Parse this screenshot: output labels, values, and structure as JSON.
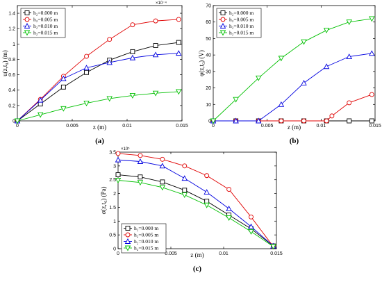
{
  "chart_data": [
    {
      "type": "line",
      "panel": "(a)",
      "caption": "(a)",
      "xlabel": "z (m)",
      "ylabel": "u(z,t₀) (m)",
      "multiplier": "×10⁻⁴",
      "xlim": [
        0,
        0.015
      ],
      "ylim": [
        0,
        1.5
      ],
      "xticks": [
        "0",
        "0.005",
        "0.01",
        "0.015"
      ],
      "yticks": [
        "0",
        "0.2",
        "0.4",
        "0.6",
        "0.8",
        "1",
        "1.2",
        "1.4"
      ],
      "legend_position": "top-left",
      "series": [
        {
          "name": "h₂=0.000 m",
          "color": "#000000",
          "marker": "square",
          "x": [
            0,
            0.0021,
            0.0042,
            0.0063,
            0.0084,
            0.0105,
            0.0126,
            0.0147
          ],
          "y": [
            0,
            0.22,
            0.44,
            0.63,
            0.79,
            0.9,
            0.98,
            1.02
          ]
        },
        {
          "name": "h₂=0.005 m",
          "color": "#e00000",
          "marker": "circle",
          "x": [
            0,
            0.0021,
            0.0042,
            0.0063,
            0.0084,
            0.0105,
            0.0126,
            0.0147
          ],
          "y": [
            0,
            0.28,
            0.58,
            0.84,
            1.06,
            1.25,
            1.3,
            1.32
          ]
        },
        {
          "name": "h₂=0.010 m",
          "color": "#0000e0",
          "marker": "triangle-up",
          "x": [
            0,
            0.0021,
            0.0042,
            0.0063,
            0.0084,
            0.0105,
            0.0126,
            0.0147
          ],
          "y": [
            0,
            0.27,
            0.55,
            0.69,
            0.76,
            0.82,
            0.86,
            0.88
          ]
        },
        {
          "name": "h₂=0.015 m",
          "color": "#00c000",
          "marker": "triangle-down",
          "x": [
            0,
            0.0021,
            0.0042,
            0.0063,
            0.0084,
            0.0105,
            0.0126,
            0.0147
          ],
          "y": [
            0,
            0.08,
            0.16,
            0.23,
            0.29,
            0.33,
            0.36,
            0.38
          ]
        }
      ]
    },
    {
      "type": "line",
      "panel": "(b)",
      "caption": "(b)",
      "xlabel": "z (m)",
      "ylabel": "φ(z,t₀) (V)",
      "xlim": [
        0,
        0.015
      ],
      "ylim": [
        0,
        70
      ],
      "xticks": [
        "0",
        "0.005",
        "0.01",
        "0.015"
      ],
      "yticks": [
        "0",
        "10",
        "20",
        "30",
        "40",
        "50",
        "60",
        "70"
      ],
      "legend_position": "top-left",
      "series": [
        {
          "name": "h₂=0.000 m",
          "color": "#000000",
          "marker": "square",
          "x": [
            0,
            0.0021,
            0.0042,
            0.0063,
            0.0084,
            0.0105,
            0.0126,
            0.0147
          ],
          "y": [
            0,
            0,
            0,
            0,
            0,
            0,
            0,
            0
          ]
        },
        {
          "name": "h₂=0.005 m",
          "color": "#e00000",
          "marker": "circle",
          "x": [
            0,
            0.0021,
            0.0042,
            0.0063,
            0.0084,
            0.0105,
            0.011,
            0.0126,
            0.0147
          ],
          "y": [
            0,
            0,
            0,
            0,
            0,
            0,
            3,
            11,
            16
          ]
        },
        {
          "name": "h₂=0.010 m",
          "color": "#0000e0",
          "marker": "triangle-up",
          "x": [
            0,
            0.0021,
            0.0042,
            0.0063,
            0.0084,
            0.0105,
            0.0126,
            0.0147
          ],
          "y": [
            0,
            0,
            0,
            10,
            23,
            33,
            39,
            41
          ]
        },
        {
          "name": "h₂=0.015 m",
          "color": "#00c000",
          "marker": "triangle-down",
          "x": [
            0,
            0.0021,
            0.0042,
            0.0063,
            0.0084,
            0.0105,
            0.0126,
            0.0147
          ],
          "y": [
            0,
            13,
            26,
            38,
            48,
            55,
            60,
            62
          ]
        }
      ]
    },
    {
      "type": "line",
      "panel": "(c)",
      "caption": "(c)",
      "xlabel": "z (m)",
      "ylabel": "σ(z,t₀) (Pa)",
      "multiplier": "×10⁵",
      "xlim": [
        0,
        0.015
      ],
      "ylim": [
        0,
        3.5
      ],
      "xticks": [
        "0",
        "0.005",
        "0.01",
        "0.015"
      ],
      "yticks": [
        "0",
        "0.5",
        "1",
        "1.5",
        "2",
        "2.5",
        "3",
        "3.5"
      ],
      "legend_position": "bottom-left",
      "series": [
        {
          "name": "h₂=0.000 m",
          "color": "#000000",
          "marker": "square",
          "x": [
            0,
            0.0021,
            0.0042,
            0.0063,
            0.0084,
            0.0105,
            0.0126,
            0.0147
          ],
          "y": [
            2.68,
            2.6,
            2.42,
            2.12,
            1.72,
            1.22,
            0.72,
            0.1
          ]
        },
        {
          "name": "h₂=0.005 m",
          "color": "#e00000",
          "marker": "circle",
          "x": [
            0,
            0.0021,
            0.0042,
            0.0063,
            0.0084,
            0.0105,
            0.0126,
            0.0147
          ],
          "y": [
            3.45,
            3.38,
            3.24,
            3.0,
            2.65,
            2.15,
            1.15,
            0.08
          ]
        },
        {
          "name": "h₂=0.010 m",
          "color": "#0000e0",
          "marker": "triangle-up",
          "x": [
            0,
            0.0021,
            0.0042,
            0.0063,
            0.0084,
            0.0105,
            0.0126,
            0.0147
          ],
          "y": [
            3.22,
            3.16,
            3.0,
            2.55,
            2.05,
            1.45,
            0.8,
            0.1
          ]
        },
        {
          "name": "h₂=0.015 m",
          "color": "#00c000",
          "marker": "triangle-down",
          "x": [
            0,
            0.0021,
            0.0042,
            0.0063,
            0.0084,
            0.0105,
            0.0126,
            0.0147
          ],
          "y": [
            2.48,
            2.4,
            2.22,
            1.95,
            1.58,
            1.12,
            0.62,
            0.08
          ]
        }
      ]
    }
  ]
}
